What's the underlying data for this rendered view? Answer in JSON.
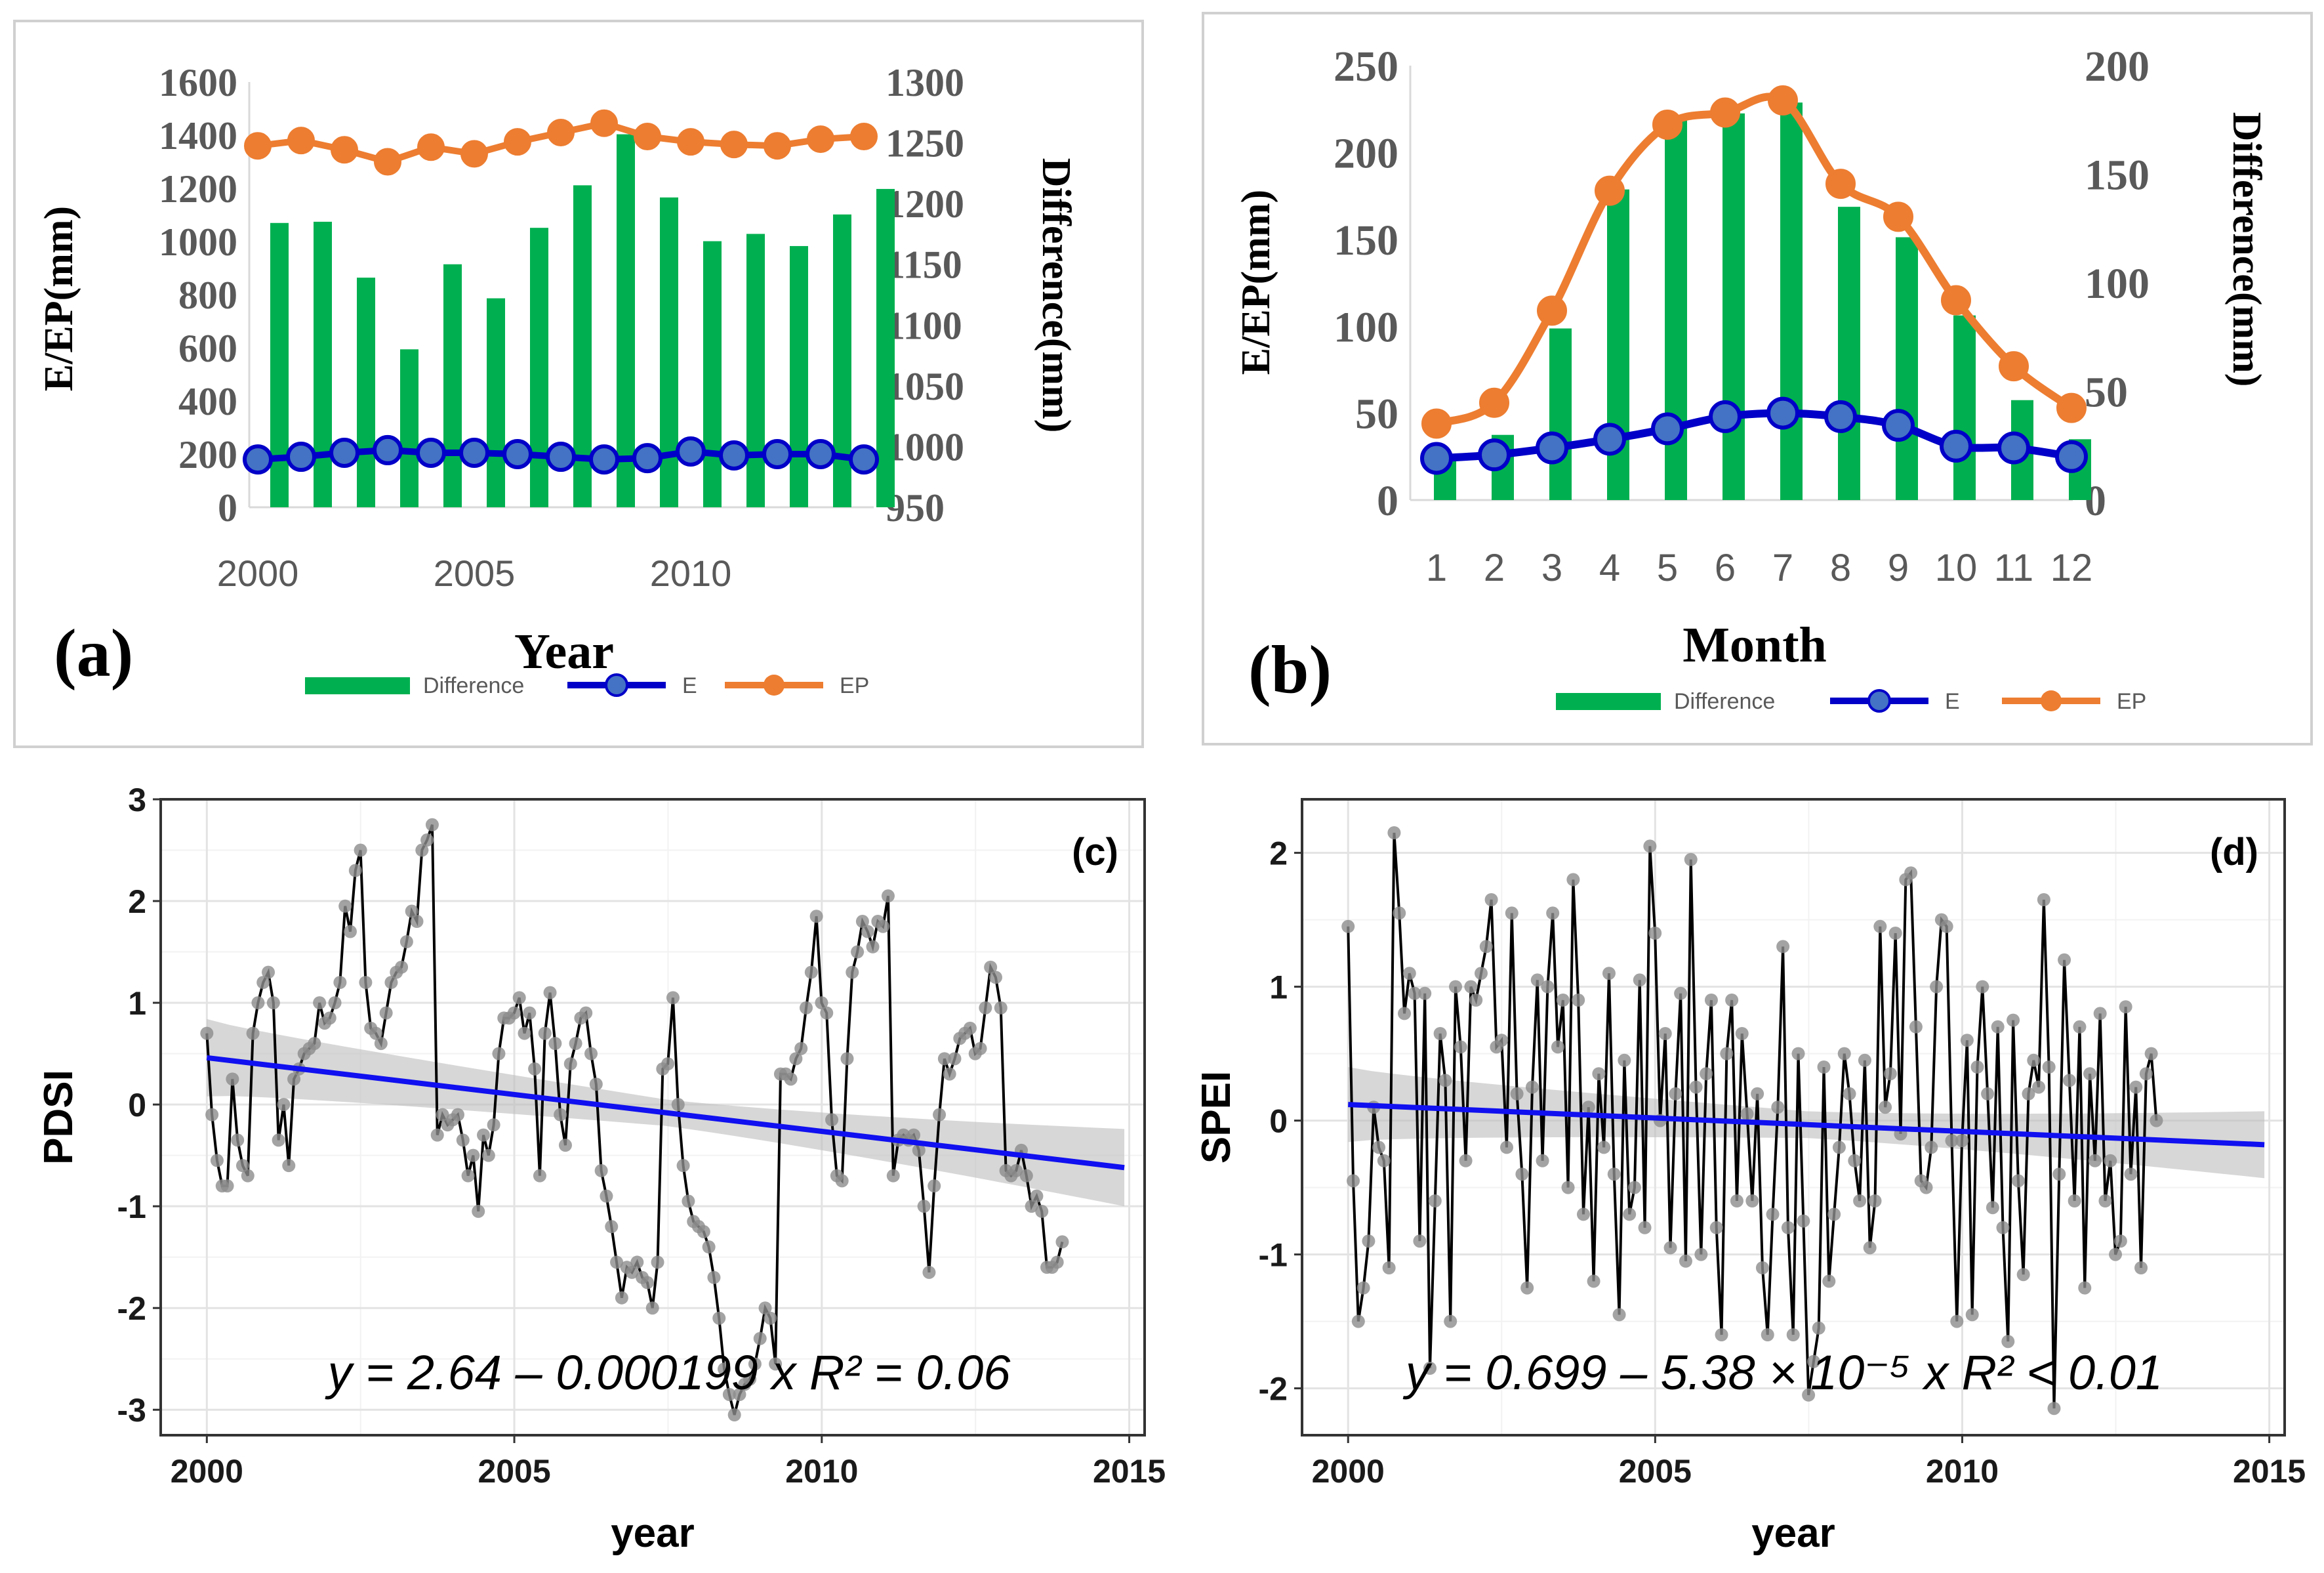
{
  "chart_data": [
    {
      "panel": "a",
      "type": "bar+line",
      "panel_label": "(a)",
      "xlabel": "Year",
      "ylabel_left": "E/EP(mm)",
      "ylabel_right": "Difference(mm)",
      "ylim_left": [
        0,
        1600
      ],
      "ylim_right": [
        950,
        1300
      ],
      "left_ticks": [
        "0",
        "200",
        "400",
        "600",
        "800",
        "1000",
        "1200",
        "1400",
        "1600"
      ],
      "right_ticks": [
        "950",
        "1000",
        "1050",
        "1100",
        "1150",
        "1200",
        "1250",
        "1300"
      ],
      "x_ticks": [
        "2000",
        "2005",
        "2010"
      ],
      "x": [
        2000,
        2001,
        2002,
        2003,
        2004,
        2005,
        2006,
        2007,
        2008,
        2009,
        2010,
        2011,
        2012,
        2013,
        2014
      ],
      "series": [
        {
          "name": "Difference",
          "kind": "bar",
          "axis": "right",
          "color": "#00b050",
          "values": [
            1184,
            1185,
            1139,
            1080,
            1150,
            1122,
            1180,
            1215,
            1257,
            1205,
            1169,
            1175,
            1165,
            1191,
            1212
          ]
        },
        {
          "name": "E",
          "kind": "line",
          "axis": "left",
          "color": "#0000c8",
          "marker": "#4472c4",
          "values": [
            180,
            190,
            205,
            215,
            205,
            205,
            200,
            190,
            180,
            185,
            210,
            195,
            200,
            200,
            180
          ]
        },
        {
          "name": "EP",
          "kind": "line",
          "axis": "left",
          "color": "#ed7d31",
          "marker": "#ed7d31",
          "values": [
            1360,
            1380,
            1345,
            1300,
            1355,
            1330,
            1375,
            1410,
            1445,
            1395,
            1375,
            1365,
            1360,
            1385,
            1395
          ]
        }
      ],
      "legend": [
        "Difference",
        "E",
        "EP"
      ]
    },
    {
      "panel": "b",
      "type": "bar+line",
      "panel_label": "(b)",
      "xlabel": "Month",
      "ylabel_left": "E/EP(mm)",
      "ylabel_right": "Difference(mm)",
      "ylim_left": [
        0,
        250
      ],
      "ylim_right": [
        0,
        200
      ],
      "left_ticks": [
        "0",
        "50",
        "100",
        "150",
        "200",
        "250"
      ],
      "right_ticks": [
        "0",
        "50",
        "100",
        "150",
        "200"
      ],
      "x_ticks": [
        "1",
        "2",
        "3",
        "4",
        "5",
        "6",
        "7",
        "8",
        "9",
        "10",
        "11",
        "12"
      ],
      "x": [
        1,
        2,
        3,
        4,
        5,
        6,
        7,
        8,
        9,
        10,
        11,
        12
      ],
      "series": [
        {
          "name": "Difference",
          "kind": "bar",
          "axis": "right",
          "color": "#00b050",
          "values": [
            19,
            30,
            79,
            143,
            175,
            178,
            183,
            135,
            121,
            85,
            46,
            28
          ]
        },
        {
          "name": "E",
          "kind": "line",
          "axis": "left",
          "color": "#0000c8",
          "marker": "#4472c4",
          "values": [
            24,
            26,
            30,
            35,
            41,
            48,
            50,
            48,
            43,
            31,
            30,
            25
          ]
        },
        {
          "name": "EP",
          "kind": "line",
          "axis": "left",
          "color": "#ed7d31",
          "marker": "#ed7d31",
          "values": [
            44,
            56,
            109,
            178,
            216,
            223,
            230,
            182,
            163,
            115,
            77,
            53
          ]
        }
      ],
      "legend": [
        "Difference",
        "E",
        "EP"
      ]
    },
    {
      "panel": "c",
      "type": "line",
      "panel_label": "(c)",
      "xlabel": "year",
      "ylabel": "PDSI",
      "xlim": [
        1999.25,
        2015.25
      ],
      "ylim": [
        -3.25,
        3.0
      ],
      "x_ticks": [
        "2000",
        "2005",
        "2010",
        "2015"
      ],
      "y_ticks": [
        "-3",
        "-2",
        "-1",
        "0",
        "1",
        "2",
        "3"
      ],
      "x_start": 2000.0,
      "x_step": 0.0833,
      "values": [
        0.7,
        -0.1,
        -0.55,
        -0.8,
        -0.8,
        0.25,
        -0.35,
        -0.6,
        -0.7,
        0.7,
        1.0,
        1.2,
        1.3,
        1.0,
        -0.35,
        0.0,
        -0.6,
        0.25,
        0.35,
        0.5,
        0.55,
        0.6,
        1.0,
        0.8,
        0.85,
        1.0,
        1.2,
        1.95,
        1.7,
        2.3,
        2.5,
        1.2,
        0.75,
        0.7,
        0.6,
        0.9,
        1.2,
        1.3,
        1.35,
        1.6,
        1.9,
        1.8,
        2.5,
        2.6,
        2.75,
        -0.3,
        -0.1,
        -0.2,
        -0.15,
        -0.1,
        -0.35,
        -0.7,
        -0.5,
        -1.05,
        -0.3,
        -0.5,
        -0.2,
        0.5,
        0.85,
        0.85,
        0.9,
        1.05,
        0.7,
        0.9,
        0.35,
        -0.7,
        0.7,
        1.1,
        0.6,
        -0.1,
        -0.4,
        0.4,
        0.6,
        0.85,
        0.9,
        0.5,
        0.2,
        -0.65,
        -0.9,
        -1.2,
        -1.55,
        -1.9,
        -1.6,
        -1.65,
        -1.55,
        -1.7,
        -1.75,
        -2.0,
        -1.55,
        0.35,
        0.4,
        1.05,
        0.0,
        -0.6,
        -0.95,
        -1.15,
        -1.2,
        -1.25,
        -1.4,
        -1.7,
        -2.1,
        -2.6,
        -2.85,
        -3.05,
        -2.85,
        -2.75,
        -2.7,
        -2.55,
        -2.3,
        -2.0,
        -2.1,
        -2.55,
        0.3,
        0.3,
        0.25,
        0.45,
        0.55,
        0.95,
        1.3,
        1.85,
        1.0,
        0.9,
        -0.15,
        -0.7,
        -0.75,
        0.45,
        1.3,
        1.5,
        1.8,
        1.7,
        1.55,
        1.8,
        1.75,
        2.05,
        -0.7,
        -0.35,
        -0.3,
        -0.35,
        -0.3,
        -0.45,
        -1.0,
        -1.65,
        -0.8,
        -0.1,
        0.45,
        0.3,
        0.45,
        0.65,
        0.7,
        0.75,
        0.5,
        0.55,
        0.95,
        1.35,
        1.25,
        0.95,
        -0.65,
        -0.7,
        -0.65,
        -0.45,
        -0.7,
        -1.0,
        -0.9,
        -1.05,
        -1.6,
        -1.6,
        -1.55,
        -1.35
      ],
      "trend": {
        "label": "y = 2.64 – 0.000199 x   R² = 0.06",
        "start": [
          2000.0,
          0.46
        ],
        "end": [
          2014.92,
          -0.62
        ],
        "band_halfwidth_start": 0.38,
        "band_halfwidth_mid": 0.13,
        "band_halfwidth_end": 0.38
      }
    },
    {
      "panel": "d",
      "type": "line",
      "panel_label": "(d)",
      "xlabel": "year",
      "ylabel": "SPEI",
      "xlim": [
        1999.25,
        2015.25
      ],
      "ylim": [
        -2.35,
        2.4
      ],
      "x_ticks": [
        "2000",
        "2005",
        "2010",
        "2015"
      ],
      "y_ticks": [
        "-2",
        "-1",
        "0",
        "1",
        "2"
      ],
      "x_start": 2000.0,
      "x_step": 0.0833,
      "values": [
        1.45,
        -0.45,
        -1.5,
        -1.25,
        -0.9,
        0.1,
        -0.2,
        -0.3,
        -1.1,
        2.15,
        1.55,
        0.8,
        1.1,
        0.95,
        -0.9,
        0.95,
        -1.85,
        -0.6,
        0.65,
        0.3,
        -1.5,
        1.0,
        0.55,
        -0.3,
        1.0,
        0.9,
        1.1,
        1.3,
        1.65,
        0.55,
        0.6,
        -0.2,
        1.55,
        0.2,
        -0.4,
        -1.25,
        0.25,
        1.05,
        -0.3,
        1.0,
        1.55,
        0.55,
        0.9,
        -0.5,
        1.8,
        0.9,
        -0.7,
        0.1,
        -1.2,
        0.35,
        -0.2,
        1.1,
        -0.4,
        -1.45,
        0.45,
        -0.7,
        -0.5,
        1.05,
        -0.8,
        2.05,
        1.4,
        0.0,
        0.65,
        -0.95,
        0.2,
        0.95,
        -1.05,
        1.95,
        0.25,
        -1.0,
        0.35,
        0.9,
        -0.8,
        -1.6,
        0.5,
        0.9,
        -0.6,
        0.65,
        0.05,
        -0.6,
        0.2,
        -1.1,
        -1.6,
        -0.7,
        0.1,
        1.3,
        -0.8,
        -1.6,
        0.5,
        -0.75,
        -2.05,
        -1.8,
        -1.55,
        0.4,
        -1.2,
        -0.7,
        -0.2,
        0.5,
        0.2,
        -0.3,
        -0.6,
        0.45,
        -0.95,
        -0.6,
        1.45,
        0.1,
        0.35,
        1.4,
        -0.1,
        1.8,
        1.85,
        0.7,
        -0.45,
        -0.5,
        -0.2,
        1.0,
        1.5,
        1.45,
        -0.15,
        -1.5,
        -0.15,
        0.6,
        -1.45,
        0.4,
        1.0,
        0.2,
        -0.65,
        0.7,
        -0.8,
        -1.65,
        0.75,
        -0.45,
        -1.15,
        0.2,
        0.45,
        0.25,
        1.65,
        0.4,
        -2.15,
        -0.4,
        1.2,
        0.3,
        -0.6,
        0.7,
        -1.25,
        0.35,
        -0.3,
        0.8,
        -0.6,
        -0.3,
        -1.0,
        -0.9,
        0.85,
        -0.4,
        0.25,
        -1.1,
        0.35,
        0.5,
        0.0
      ],
      "trend": {
        "label": "y = 0.699 – 5.38 × 10⁻⁵ x   R² < 0.01",
        "start": [
          2000.0,
          0.12
        ],
        "end": [
          2014.92,
          -0.18
        ],
        "band_halfwidth_start": 0.28,
        "band_halfwidth_mid": 0.1,
        "band_halfwidth_end": 0.25
      }
    }
  ]
}
